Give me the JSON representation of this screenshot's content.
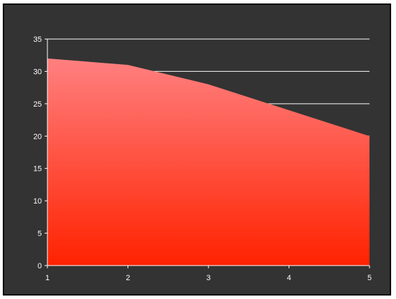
{
  "chart_data": {
    "type": "area",
    "x": [
      1,
      2,
      3,
      4,
      5
    ],
    "values": [
      32,
      31,
      28,
      24,
      20
    ],
    "title": "",
    "xlabel": "",
    "ylabel": "",
    "ylim": [
      0,
      35
    ],
    "yticks": [
      0,
      5,
      10,
      15,
      20,
      25,
      30,
      35
    ],
    "xticks": [
      1,
      2,
      3,
      4,
      5
    ],
    "grid": "horizontal",
    "legend": "none",
    "colors": {
      "background": "#333333",
      "frame_border": "#000000",
      "fill_top": "#ff8080",
      "fill_bottom": "#ff2200",
      "gridline": "#ffffff",
      "axis": "#ffffff",
      "text": "#ffffff"
    }
  }
}
